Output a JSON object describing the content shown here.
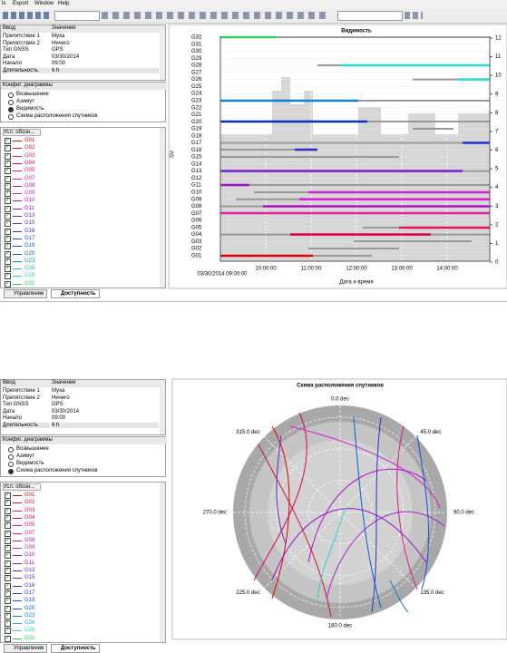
{
  "menu": [
    "ls",
    "Export",
    "Window",
    "Help"
  ],
  "top": {
    "table": {
      "header": [
        "Ввод",
        "Значение"
      ],
      "rows": [
        [
          "Препятствие 1",
          "Муха"
        ],
        [
          "Препятствие 2",
          "Ничего"
        ],
        [
          "Тип GNSS",
          "GPS"
        ],
        [
          "Дата",
          "03/30/2014"
        ],
        [
          "Начало",
          "09:00"
        ],
        [
          "Длительность",
          "6 h"
        ]
      ]
    },
    "config": {
      "title": "Конфиг. диаграммы",
      "options": [
        "Возвышение",
        "Азимут",
        "Видимость",
        "Схема расположения спутников"
      ],
      "selected": 2
    },
    "legend": {
      "title": "Усл. обозн...",
      "items": [
        {
          "name": "G01",
          "color": "#e00000"
        },
        {
          "name": "G02",
          "color": "#d0103a"
        },
        {
          "name": "G03",
          "color": "#d8206a"
        },
        {
          "name": "G04",
          "color": "#e0005a"
        },
        {
          "name": "G05",
          "color": "#e8108a"
        },
        {
          "name": "G07",
          "color": "#e020a0"
        },
        {
          "name": "G08",
          "color": "#a020c0"
        },
        {
          "name": "G09",
          "color": "#d020d0"
        },
        {
          "name": "G10",
          "color": "#b010c8"
        },
        {
          "name": "G11",
          "color": "#9010c8"
        },
        {
          "name": "G13",
          "color": "#7020c0"
        },
        {
          "name": "G15",
          "color": "#5030c0"
        },
        {
          "name": "G16",
          "color": "#3030c0"
        },
        {
          "name": "G17",
          "color": "#2040d0"
        },
        {
          "name": "G19",
          "color": "#1050e0"
        },
        {
          "name": "G20",
          "color": "#0060d0"
        },
        {
          "name": "G23",
          "color": "#1080d0"
        },
        {
          "name": "G26",
          "color": "#20b8d0"
        },
        {
          "name": "G28",
          "color": "#30d0c8"
        },
        {
          "name": "G31",
          "color": "#30c060"
        }
      ]
    },
    "tabs": [
      "Управление",
      "Доступность"
    ],
    "chart": {
      "title": "Видимость",
      "y_label": "SV",
      "x_label": "Дата и время",
      "x_start": "03/30/2014 09:00:00",
      "x_ticks": [
        "10:00:00",
        "11:00:00",
        "12:00:00",
        "13:00:00",
        "14:00:00"
      ],
      "y_ticks": [
        "G32",
        "G31",
        "G30",
        "G29",
        "G28",
        "G27",
        "G26",
        "G25",
        "G24",
        "G23",
        "G22",
        "G21",
        "G20",
        "G19",
        "G18",
        "G17",
        "G16",
        "G15",
        "G14",
        "G13",
        "G12",
        "G11",
        "G10",
        "G09",
        "G08",
        "G07",
        "G06",
        "G05",
        "G04",
        "G03",
        "G02",
        "G01"
      ],
      "y2lim": [
        0,
        12
      ],
      "y2ticks": [
        0,
        1,
        2,
        3,
        4,
        5,
        6,
        7,
        8,
        9,
        10,
        11,
        12
      ]
    }
  },
  "bottom": {
    "table": {
      "header": [
        "Ввод",
        "Значение"
      ],
      "rows": [
        [
          "Препятствие 1",
          "Муха"
        ],
        [
          "Препятствие 2",
          "Ничего"
        ],
        [
          "Тип GNSS",
          "GPS"
        ],
        [
          "Дата",
          "03/30/2014"
        ],
        [
          "Начало",
          "09:00"
        ],
        [
          "Длительность",
          "6 h"
        ]
      ]
    },
    "config": {
      "title": "Конфиг. диаграммы",
      "options": [
        "Возвышение",
        "Азимут",
        "Видимость",
        "Схема расположения спутников"
      ],
      "selected": 3
    },
    "legend": {
      "title": "Усл. обозн...",
      "items": [
        {
          "name": "G01",
          "color": "#e00000"
        },
        {
          "name": "G02",
          "color": "#d0103a"
        },
        {
          "name": "G03",
          "color": "#d8206a"
        },
        {
          "name": "G04",
          "color": "#e0005a"
        },
        {
          "name": "G05",
          "color": "#e8108a"
        },
        {
          "name": "G07",
          "color": "#e020a0"
        },
        {
          "name": "G08",
          "color": "#a020c0"
        },
        {
          "name": "G09",
          "color": "#d020d0"
        },
        {
          "name": "G10",
          "color": "#b010c8"
        },
        {
          "name": "G11",
          "color": "#9010c8"
        },
        {
          "name": "G13",
          "color": "#7020c0"
        },
        {
          "name": "G15",
          "color": "#5030c0"
        },
        {
          "name": "G16",
          "color": "#3030c0"
        },
        {
          "name": "G17",
          "color": "#2040d0"
        },
        {
          "name": "G19",
          "color": "#1050e0"
        },
        {
          "name": "G20",
          "color": "#0060d0"
        },
        {
          "name": "G23",
          "color": "#1080d0"
        },
        {
          "name": "G26",
          "color": "#20b8d0"
        },
        {
          "name": "G28",
          "color": "#30d0c8"
        },
        {
          "name": "G31",
          "color": "#30c060"
        }
      ]
    },
    "tabs": [
      "Управление",
      "Доступность"
    ],
    "chart": {
      "title": "Схема расположения спутников",
      "angle_labels": [
        "0.0 dec",
        "45.0 dec",
        "90.0 dec",
        "135.0 dec",
        "180.0 dec",
        "225.0 dec",
        "270.0 dec",
        "315.0 dec"
      ]
    }
  }
}
